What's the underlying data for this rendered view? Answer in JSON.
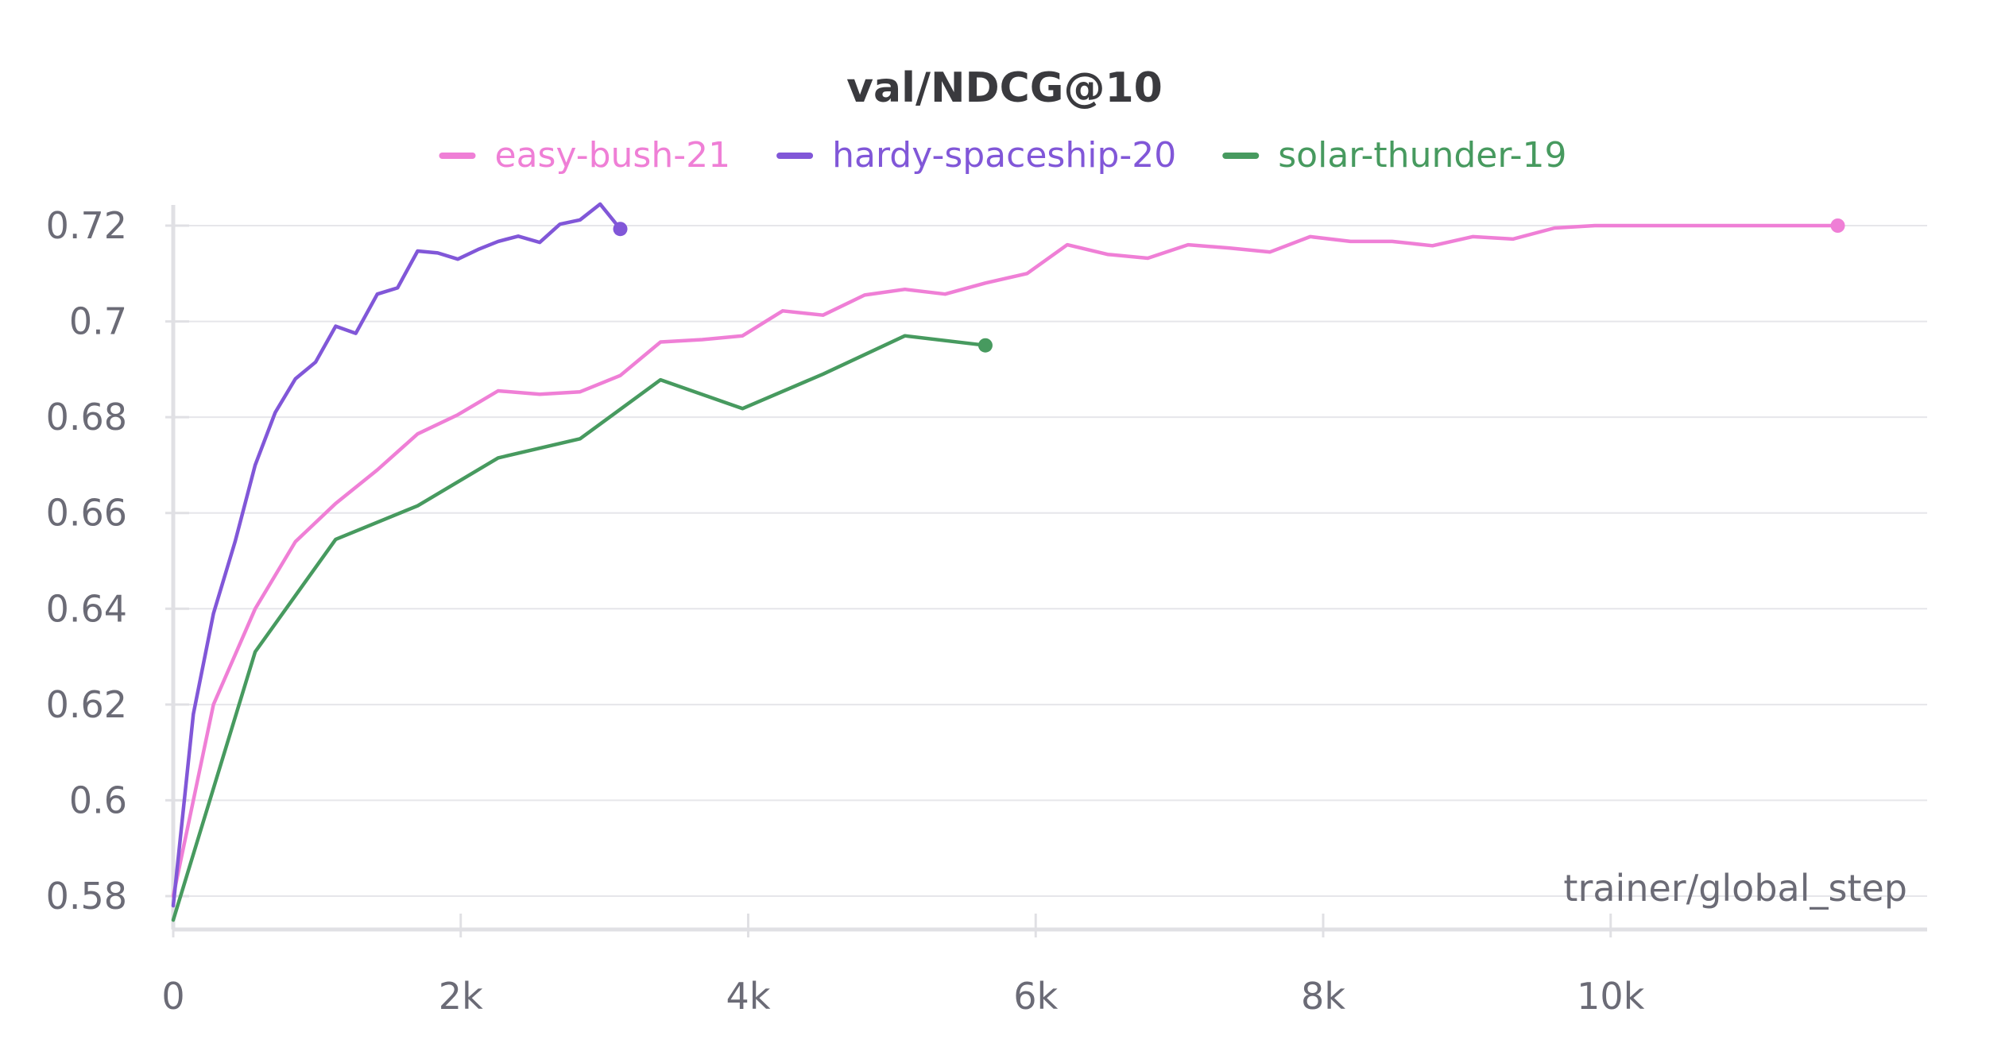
{
  "chart_data": {
    "type": "line",
    "title": "val/NDCG@10",
    "xlabel": "trainer/global_step",
    "ylabel": "",
    "xlim": [
      0,
      11600
    ],
    "ylim": [
      0.575,
      0.725
    ],
    "x_ticks": [
      0,
      2000,
      4000,
      6000,
      8000,
      10000
    ],
    "x_tick_labels": [
      "0",
      "2k",
      "4k",
      "6k",
      "8k",
      "10k"
    ],
    "y_ticks": [
      0.58,
      0.6,
      0.62,
      0.64,
      0.66,
      0.68,
      0.7,
      0.72
    ],
    "y_tick_labels": [
      "0.58",
      "0.6",
      "0.62",
      "0.64",
      "0.66",
      "0.68",
      "0.7",
      "0.72"
    ],
    "grid": true,
    "legend_position": "top-center",
    "series": [
      {
        "name": "easy-bush-21",
        "color": "#ef7fd6",
        "points": [
          [
            0,
            0.58
          ],
          [
            280,
            0.62
          ],
          [
            570,
            0.64
          ],
          [
            850,
            0.654
          ],
          [
            1130,
            0.662
          ],
          [
            1420,
            0.669
          ],
          [
            1700,
            0.6765
          ],
          [
            1980,
            0.6805
          ],
          [
            2260,
            0.6855
          ],
          [
            2550,
            0.6848
          ],
          [
            2830,
            0.6853
          ],
          [
            3110,
            0.6887
          ],
          [
            3390,
            0.6957
          ],
          [
            3680,
            0.6962
          ],
          [
            3960,
            0.697
          ],
          [
            4240,
            0.7022
          ],
          [
            4520,
            0.7013
          ],
          [
            4810,
            0.7055
          ],
          [
            5090,
            0.7067
          ],
          [
            5370,
            0.7057
          ],
          [
            5650,
            0.708
          ],
          [
            5940,
            0.71
          ],
          [
            6220,
            0.716
          ],
          [
            6500,
            0.714
          ],
          [
            6780,
            0.7132
          ],
          [
            7060,
            0.716
          ],
          [
            7350,
            0.7153
          ],
          [
            7630,
            0.7145
          ],
          [
            7910,
            0.7177
          ],
          [
            8190,
            0.7167
          ],
          [
            8480,
            0.7167
          ],
          [
            8760,
            0.7158
          ],
          [
            9040,
            0.7177
          ],
          [
            9320,
            0.7172
          ],
          [
            9610,
            0.7195
          ],
          [
            9890,
            0.72
          ],
          [
            10170,
            0.72
          ],
          [
            10450,
            0.72
          ],
          [
            10740,
            0.72
          ],
          [
            11020,
            0.72
          ],
          [
            11300,
            0.72
          ],
          [
            11580,
            0.72
          ]
        ]
      },
      {
        "name": "hardy-spaceship-20",
        "color": "#8157d8",
        "points": [
          [
            0,
            0.578
          ],
          [
            140,
            0.618
          ],
          [
            280,
            0.639
          ],
          [
            430,
            0.654
          ],
          [
            570,
            0.67
          ],
          [
            710,
            0.681
          ],
          [
            850,
            0.688
          ],
          [
            990,
            0.6915
          ],
          [
            1130,
            0.699
          ],
          [
            1270,
            0.6975
          ],
          [
            1420,
            0.7057
          ],
          [
            1560,
            0.707
          ],
          [
            1700,
            0.7147
          ],
          [
            1840,
            0.7143
          ],
          [
            1980,
            0.713
          ],
          [
            2120,
            0.715
          ],
          [
            2260,
            0.7167
          ],
          [
            2400,
            0.7178
          ],
          [
            2550,
            0.7165
          ],
          [
            2690,
            0.7203
          ],
          [
            2830,
            0.7212
          ],
          [
            2970,
            0.7245
          ],
          [
            3110,
            0.7193
          ]
        ]
      },
      {
        "name": "solar-thunder-19",
        "color": "#479a5f",
        "points": [
          [
            0,
            0.575
          ],
          [
            570,
            0.631
          ],
          [
            1130,
            0.6545
          ],
          [
            1700,
            0.6615
          ],
          [
            2260,
            0.6715
          ],
          [
            2830,
            0.6755
          ],
          [
            3390,
            0.6878
          ],
          [
            3960,
            0.6818
          ],
          [
            4520,
            0.689
          ],
          [
            5090,
            0.697
          ],
          [
            5650,
            0.695
          ]
        ]
      }
    ]
  }
}
